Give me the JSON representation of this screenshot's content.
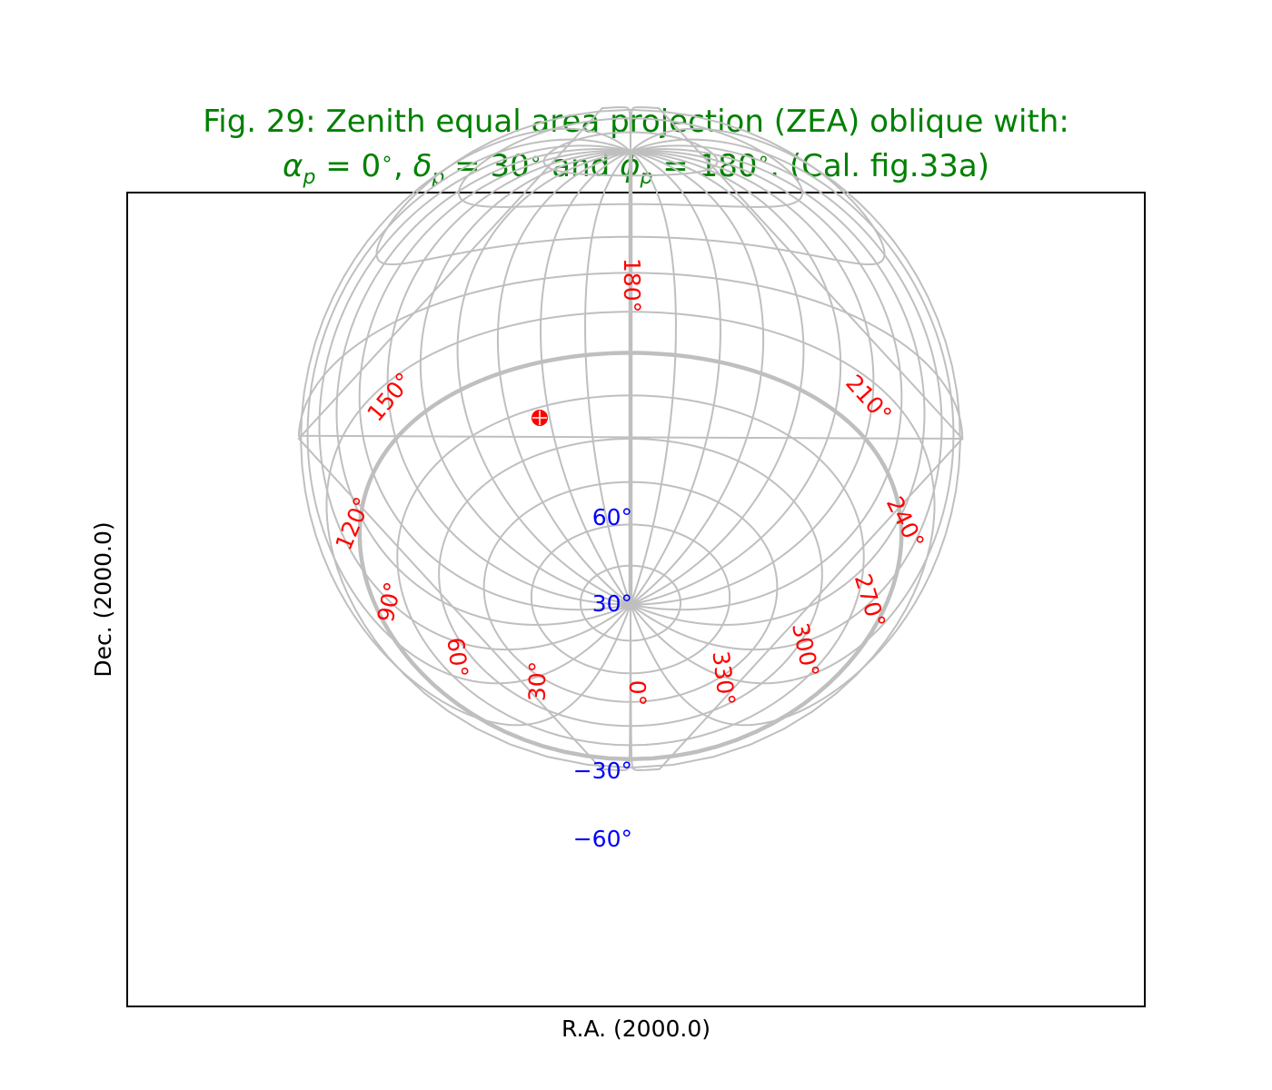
{
  "figure": {
    "title_line1": "Fig. 29: Zenith equal area projection (ZEA) oblique with:",
    "title_line2": {
      "alpha": "α",
      "sub_p": "p",
      "alpha_eq": " = 0",
      "deg": "∘",
      "sep1": ", ",
      "delta": "δ",
      "delta_eq": " = 30",
      "and": " and ",
      "phi": "ϕ",
      "phi_eq": " = 180",
      "tail": ". (Cal. fig.33a)"
    },
    "xlabel": "R.A. (2000.0)",
    "ylabel": "Dec. (2000.0)"
  },
  "ra_labels": [
    {
      "text": "180°"
    },
    {
      "text": "150°"
    },
    {
      "text": "210°"
    },
    {
      "text": "120°"
    },
    {
      "text": "240°"
    },
    {
      "text": "90°"
    },
    {
      "text": "270°"
    },
    {
      "text": "60°"
    },
    {
      "text": "300°"
    },
    {
      "text": "30°"
    },
    {
      "text": "330°"
    },
    {
      "text": "0°"
    }
  ],
  "dec_labels": [
    {
      "text": "60°"
    },
    {
      "text": "30°"
    },
    {
      "text": "−30°"
    },
    {
      "text": "−60°"
    }
  ],
  "colors": {
    "title": "#008000",
    "ra_labels": "#ff0000",
    "dec_labels": "#0000ff",
    "graticule": "#bfbfbf",
    "marker": "#ff0000"
  },
  "marker": {
    "icon": "red-dot-marker"
  }
}
